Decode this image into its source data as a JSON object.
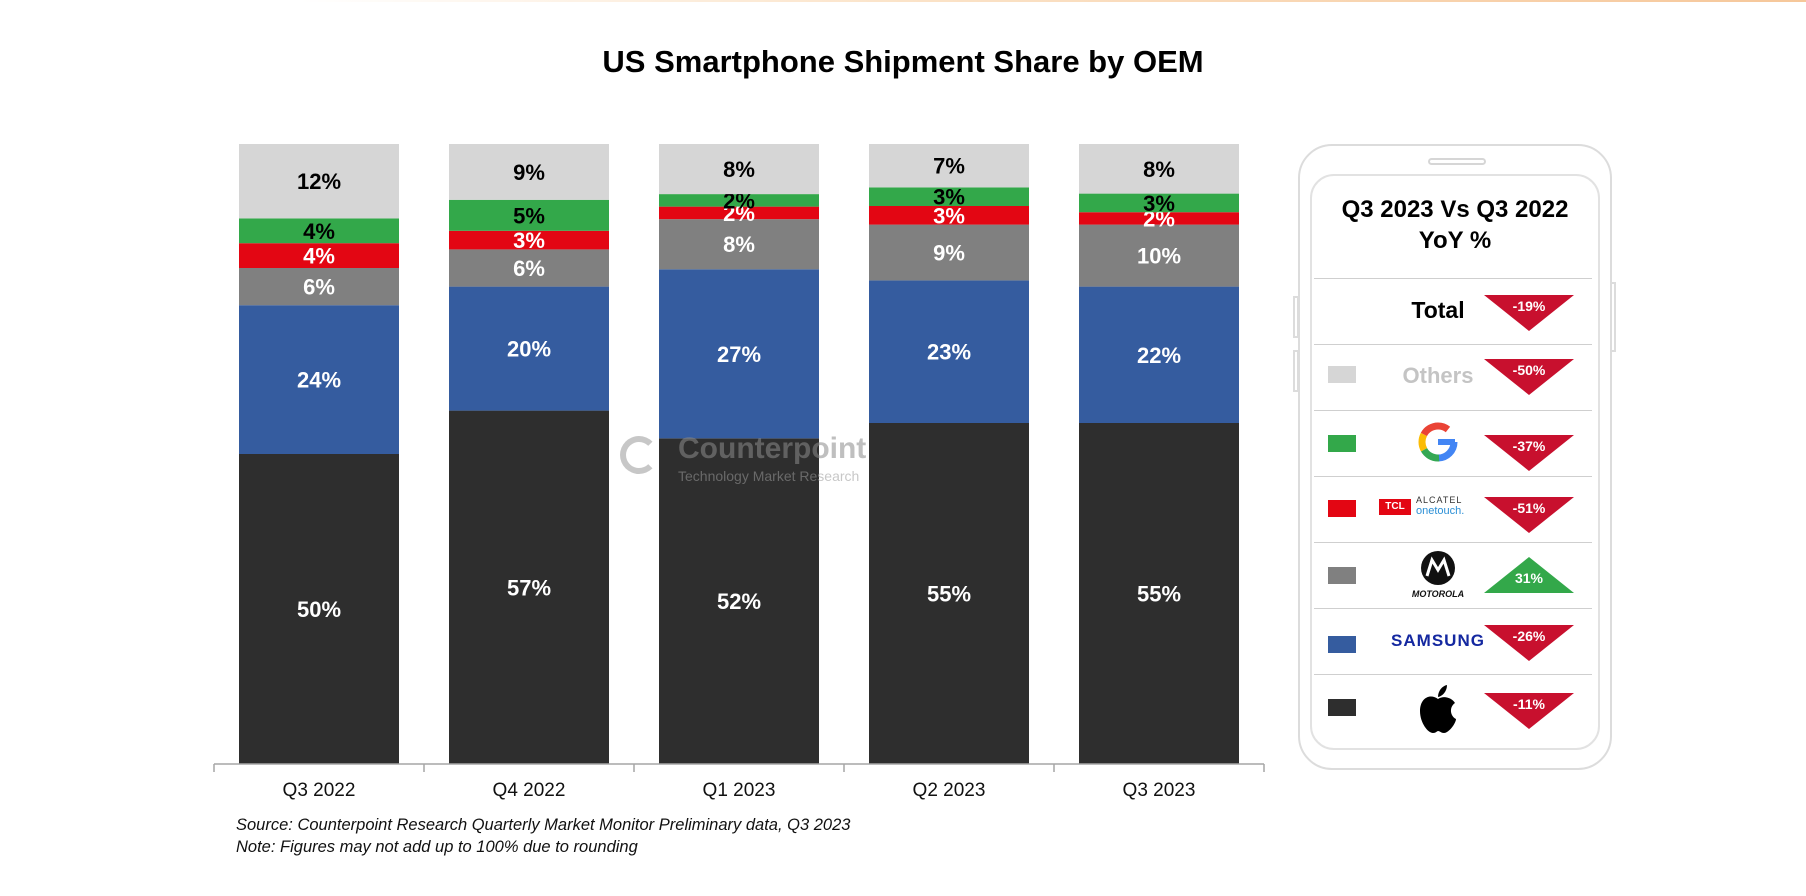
{
  "chart_data": {
    "type": "bar",
    "stacked": true,
    "title": "US Smartphone Shipment Share by OEM",
    "categories": [
      "Q3 2022",
      "Q4 2022",
      "Q1 2023",
      "Q2 2023",
      "Q3 2023"
    ],
    "series": [
      {
        "name": "Apple",
        "color": "#2e2e2e",
        "values": [
          50,
          57,
          52,
          55,
          55
        ],
        "labels": [
          "50%",
          "57%",
          "52%",
          "55%",
          "55%"
        ]
      },
      {
        "name": "Samsung",
        "color": "#355c9f",
        "values": [
          24,
          20,
          27,
          23,
          22
        ],
        "labels": [
          "24%",
          "20%",
          "27%",
          "23%",
          "22%"
        ]
      },
      {
        "name": "Motorola",
        "color": "#808080",
        "values": [
          6,
          6,
          8,
          9,
          10
        ],
        "labels": [
          "6%",
          "6%",
          "8%",
          "9%",
          "10%"
        ]
      },
      {
        "name": "TCL / Alcatel",
        "color": "#e30613",
        "values": [
          4,
          3,
          2,
          3,
          2
        ],
        "labels": [
          "4%",
          "3%",
          "2%",
          "3%",
          "2%"
        ]
      },
      {
        "name": "Google",
        "color": "#33a84a",
        "values": [
          4,
          5,
          2,
          3,
          3
        ],
        "labels": [
          "4%",
          "5%",
          "2%",
          "3%",
          "3%"
        ]
      },
      {
        "name": "Others",
        "color": "#d6d6d6",
        "values": [
          12,
          9,
          8,
          7,
          8
        ],
        "labels": [
          "12%",
          "9%",
          "8%",
          "7%",
          "8%"
        ]
      }
    ],
    "xlabel": "",
    "ylabel": "",
    "ylim": [
      0,
      100
    ]
  },
  "notes": {
    "source": "Source: Counterpoint Research Quarterly Market Monitor Preliminary data, Q3 2023",
    "note": "Note: Figures may not add up to 100% due to rounding"
  },
  "watermark": {
    "name": "Counterpoint",
    "tagline": "Technology Market Research"
  },
  "yoy_panel": {
    "title_line1": "Q3 2023 Vs Q3 2022",
    "title_line2": "YoY %",
    "rows": [
      {
        "brand": "Total",
        "yoy": "-19%",
        "direction": "down",
        "swatch": ""
      },
      {
        "brand": "Others",
        "yoy": "-50%",
        "direction": "down",
        "swatch": "#d6d6d6"
      },
      {
        "brand": "Google",
        "yoy": "-37%",
        "direction": "down",
        "swatch": "#33a84a",
        "logo_text": "G"
      },
      {
        "brand": "TCL Alcatel onetouch",
        "yoy": "-51%",
        "direction": "down",
        "swatch": "#e30613",
        "logo_text": "TCL ALCATEL onetouch."
      },
      {
        "brand": "Motorola",
        "yoy": "31%",
        "direction": "up",
        "swatch": "#808080",
        "logo_text": "MOTOROLA"
      },
      {
        "brand": "Samsung",
        "yoy": "-26%",
        "direction": "down",
        "swatch": "#355c9f",
        "logo_text": "SAMSUNG"
      },
      {
        "brand": "Apple",
        "yoy": "-11%",
        "direction": "down",
        "swatch": "#2e2e2e",
        "logo_text": ""
      }
    ]
  },
  "colors": {
    "down": "#c8102e",
    "up": "#33a84a"
  }
}
